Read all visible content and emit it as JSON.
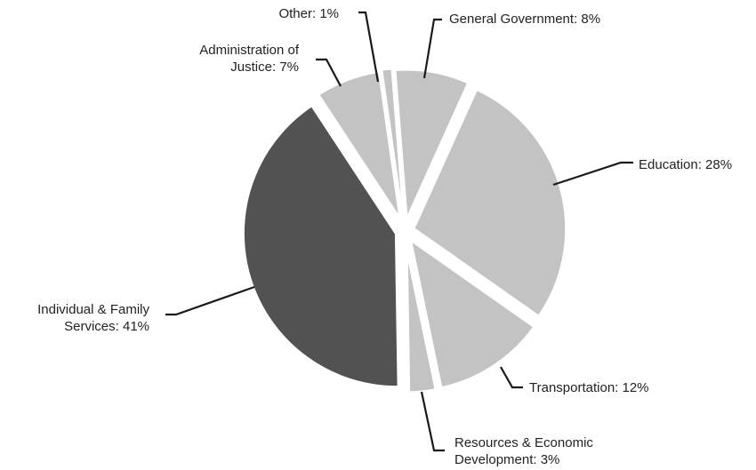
{
  "chart_data": {
    "type": "pie",
    "slices": [
      {
        "label_lines": [
          "General Government: 8%"
        ],
        "value": 8,
        "color": "#c3c3c3"
      },
      {
        "label_lines": [
          "Education: 28%"
        ],
        "value": 28,
        "color": "#c3c3c3"
      },
      {
        "label_lines": [
          "Transportation: 12%"
        ],
        "value": 12,
        "color": "#c3c3c3"
      },
      {
        "label_lines": [
          "Resources & Economic",
          "Development: 3%"
        ],
        "value": 3,
        "color": "#c3c3c3"
      },
      {
        "label_lines": [
          "Individual & Family",
          "Services: 41%"
        ],
        "value": 41,
        "color": "#525252"
      },
      {
        "label_lines": [
          "Administration of",
          "Justice: 7%"
        ],
        "value": 7,
        "color": "#c3c3c3"
      },
      {
        "label_lines": [
          "Other: 1%"
        ],
        "value": 1,
        "color": "#c3c3c3"
      }
    ],
    "legend": "none",
    "grid": false
  }
}
